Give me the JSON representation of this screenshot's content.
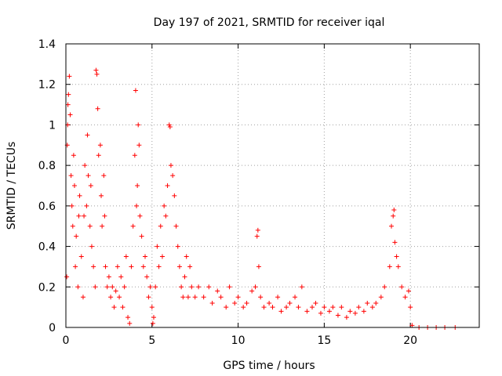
{
  "chart_data": {
    "type": "scatter",
    "title": "Day 197 of 2021, SRMTID for receiver iqal",
    "xlabel": "GPS time / hours",
    "ylabel": "SRMTID / TECUs",
    "xlim": [
      0,
      24
    ],
    "ylim": [
      0,
      1.4
    ],
    "x_ticks": [
      0,
      5,
      10,
      15,
      20
    ],
    "x_tick_labels": [
      "0",
      "5",
      "10",
      "15",
      "20"
    ],
    "y_ticks": [
      0,
      0.2,
      0.4,
      0.6,
      0.8,
      1,
      1.2,
      1.4
    ],
    "y_tick_labels": [
      "0",
      "0.2",
      "0.4",
      "0.6",
      "0.8",
      "1",
      "1.2",
      "1.4"
    ],
    "grid": true,
    "marker": "+",
    "color": "#ff0000",
    "series": [
      {
        "name": "SRMTID",
        "points": [
          [
            0.05,
            0.25
          ],
          [
            0.08,
            0.9
          ],
          [
            0.1,
            1.0
          ],
          [
            0.12,
            1.1
          ],
          [
            0.15,
            1.15
          ],
          [
            0.2,
            1.24
          ],
          [
            0.25,
            1.05
          ],
          [
            0.3,
            0.75
          ],
          [
            0.35,
            0.6
          ],
          [
            0.4,
            0.5
          ],
          [
            0.45,
            0.85
          ],
          [
            0.5,
            0.7
          ],
          [
            0.55,
            0.3
          ],
          [
            0.6,
            0.45
          ],
          [
            0.7,
            0.2
          ],
          [
            0.75,
            0.55
          ],
          [
            0.8,
            0.65
          ],
          [
            0.9,
            0.35
          ],
          [
            1.0,
            0.15
          ],
          [
            1.05,
            0.55
          ],
          [
            1.1,
            0.8
          ],
          [
            1.2,
            0.6
          ],
          [
            1.25,
            0.95
          ],
          [
            1.3,
            0.75
          ],
          [
            1.4,
            0.5
          ],
          [
            1.45,
            0.7
          ],
          [
            1.5,
            0.4
          ],
          [
            1.6,
            0.3
          ],
          [
            1.7,
            0.2
          ],
          [
            1.75,
            1.27
          ],
          [
            1.8,
            1.25
          ],
          [
            1.85,
            1.08
          ],
          [
            1.9,
            0.85
          ],
          [
            2.0,
            0.9
          ],
          [
            2.05,
            0.65
          ],
          [
            2.1,
            0.5
          ],
          [
            2.2,
            0.75
          ],
          [
            2.25,
            0.55
          ],
          [
            2.3,
            0.3
          ],
          [
            2.4,
            0.2
          ],
          [
            2.5,
            0.25
          ],
          [
            2.6,
            0.15
          ],
          [
            2.7,
            0.2
          ],
          [
            2.8,
            0.1
          ],
          [
            2.9,
            0.18
          ],
          [
            3.0,
            0.3
          ],
          [
            3.1,
            0.15
          ],
          [
            3.2,
            0.25
          ],
          [
            3.3,
            0.1
          ],
          [
            3.4,
            0.2
          ],
          [
            3.5,
            0.35
          ],
          [
            3.6,
            0.05
          ],
          [
            3.7,
            0.02
          ],
          [
            3.8,
            0.3
          ],
          [
            3.9,
            0.5
          ],
          [
            4.0,
            0.85
          ],
          [
            4.05,
            1.17
          ],
          [
            4.1,
            0.6
          ],
          [
            4.15,
            0.7
          ],
          [
            4.2,
            1.0
          ],
          [
            4.25,
            0.9
          ],
          [
            4.3,
            0.55
          ],
          [
            4.4,
            0.45
          ],
          [
            4.5,
            0.3
          ],
          [
            4.6,
            0.35
          ],
          [
            4.7,
            0.25
          ],
          [
            4.8,
            0.15
          ],
          [
            4.9,
            0.2
          ],
          [
            5.0,
            0.1
          ],
          [
            5.05,
            0.02
          ],
          [
            5.1,
            0.05
          ],
          [
            5.2,
            0.2
          ],
          [
            5.3,
            0.4
          ],
          [
            5.4,
            0.3
          ],
          [
            5.5,
            0.5
          ],
          [
            5.6,
            0.35
          ],
          [
            5.7,
            0.6
          ],
          [
            5.8,
            0.55
          ],
          [
            5.9,
            0.7
          ],
          [
            6.0,
            1.0
          ],
          [
            6.05,
            0.99
          ],
          [
            6.1,
            0.8
          ],
          [
            6.2,
            0.75
          ],
          [
            6.3,
            0.65
          ],
          [
            6.4,
            0.5
          ],
          [
            6.5,
            0.4
          ],
          [
            6.6,
            0.3
          ],
          [
            6.7,
            0.2
          ],
          [
            6.8,
            0.15
          ],
          [
            6.9,
            0.25
          ],
          [
            7.0,
            0.35
          ],
          [
            7.1,
            0.15
          ],
          [
            7.2,
            0.3
          ],
          [
            7.3,
            0.2
          ],
          [
            7.5,
            0.15
          ],
          [
            7.7,
            0.2
          ],
          [
            8.0,
            0.15
          ],
          [
            8.3,
            0.2
          ],
          [
            8.5,
            0.12
          ],
          [
            8.8,
            0.18
          ],
          [
            9.0,
            0.15
          ],
          [
            9.3,
            0.1
          ],
          [
            9.5,
            0.2
          ],
          [
            9.8,
            0.12
          ],
          [
            10.0,
            0.15
          ],
          [
            10.3,
            0.1
          ],
          [
            10.5,
            0.12
          ],
          [
            10.8,
            0.18
          ],
          [
            11.0,
            0.2
          ],
          [
            11.1,
            0.45
          ],
          [
            11.15,
            0.48
          ],
          [
            11.2,
            0.3
          ],
          [
            11.3,
            0.15
          ],
          [
            11.5,
            0.1
          ],
          [
            11.8,
            0.12
          ],
          [
            12.0,
            0.1
          ],
          [
            12.3,
            0.15
          ],
          [
            12.5,
            0.08
          ],
          [
            12.8,
            0.1
          ],
          [
            13.0,
            0.12
          ],
          [
            13.3,
            0.15
          ],
          [
            13.5,
            0.1
          ],
          [
            13.7,
            0.2
          ],
          [
            14.0,
            0.08
          ],
          [
            14.3,
            0.1
          ],
          [
            14.5,
            0.12
          ],
          [
            14.8,
            0.07
          ],
          [
            15.0,
            0.1
          ],
          [
            15.3,
            0.08
          ],
          [
            15.5,
            0.1
          ],
          [
            15.8,
            0.06
          ],
          [
            16.0,
            0.1
          ],
          [
            16.3,
            0.05
          ],
          [
            16.5,
            0.08
          ],
          [
            16.8,
            0.07
          ],
          [
            17.0,
            0.1
          ],
          [
            17.3,
            0.08
          ],
          [
            17.5,
            0.12
          ],
          [
            17.8,
            0.1
          ],
          [
            18.0,
            0.12
          ],
          [
            18.3,
            0.15
          ],
          [
            18.5,
            0.2
          ],
          [
            18.8,
            0.3
          ],
          [
            18.9,
            0.5
          ],
          [
            19.0,
            0.55
          ],
          [
            19.05,
            0.58
          ],
          [
            19.1,
            0.42
          ],
          [
            19.2,
            0.35
          ],
          [
            19.3,
            0.3
          ],
          [
            19.5,
            0.2
          ],
          [
            19.7,
            0.15
          ],
          [
            19.9,
            0.18
          ],
          [
            20.0,
            0.1
          ],
          [
            20.1,
            0.01
          ],
          [
            20.5,
            0.0
          ],
          [
            21.0,
            0.0
          ],
          [
            21.5,
            0.0
          ],
          [
            22.0,
            0.0
          ],
          [
            22.6,
            0.0
          ]
        ]
      }
    ]
  }
}
